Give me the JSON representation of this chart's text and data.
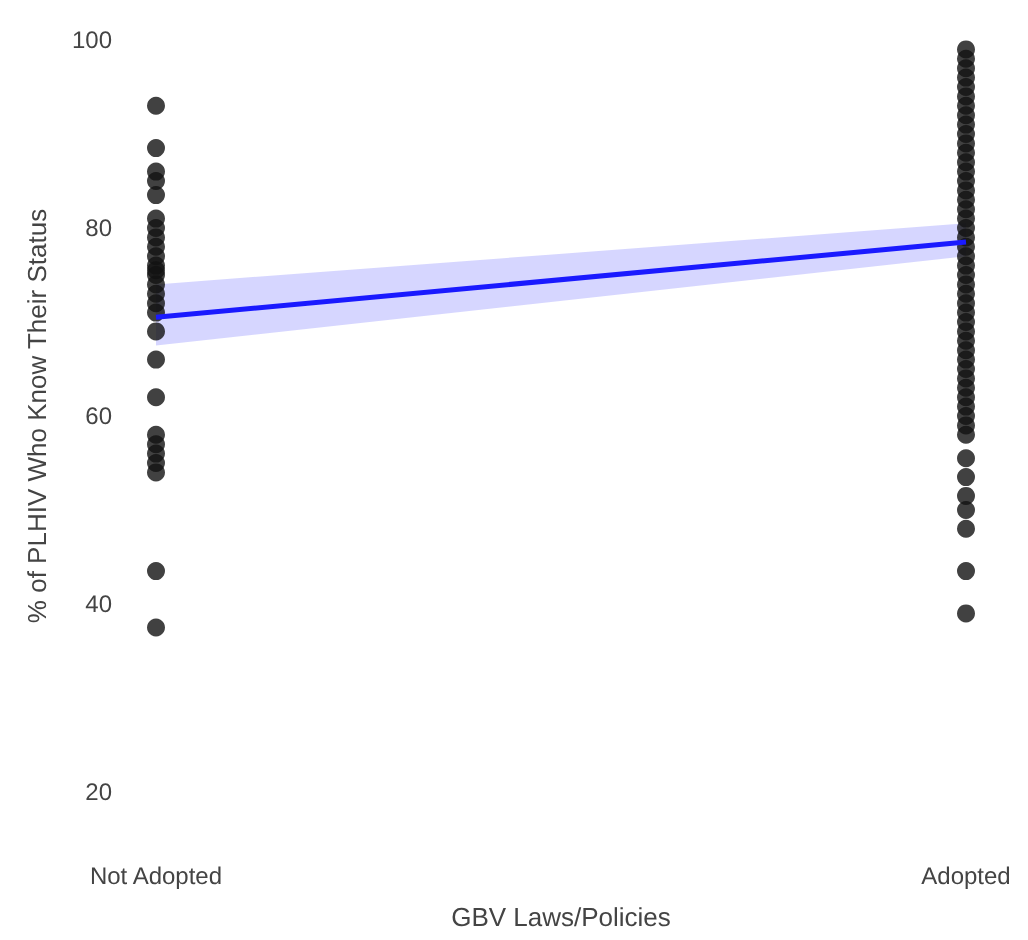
{
  "chart_data": {
    "type": "scatter",
    "xlabel": "GBV Laws/Policies",
    "ylabel": "% of PLHIV Who Know Their Status",
    "categories": [
      "Not Adopted",
      "Adopted"
    ],
    "ylim": [
      20,
      100
    ],
    "yticks": [
      20,
      40,
      60,
      80,
      100
    ],
    "grid": false,
    "series": [
      {
        "color": "#111111",
        "marker": "circle",
        "x": [
          "Not Adopted",
          "Not Adopted",
          "Not Adopted",
          "Not Adopted",
          "Not Adopted",
          "Not Adopted",
          "Not Adopted",
          "Not Adopted",
          "Not Adopted",
          "Not Adopted",
          "Not Adopted",
          "Not Adopted",
          "Not Adopted",
          "Not Adopted",
          "Not Adopted",
          "Not Adopted",
          "Not Adopted",
          "Not Adopted",
          "Not Adopted",
          "Not Adopted",
          "Not Adopted",
          "Not Adopted",
          "Not Adopted",
          "Not Adopted",
          "Not Adopted",
          "Not Adopted",
          "Not Adopted",
          "Adopted",
          "Adopted",
          "Adopted",
          "Adopted",
          "Adopted",
          "Adopted",
          "Adopted",
          "Adopted",
          "Adopted",
          "Adopted",
          "Adopted",
          "Adopted",
          "Adopted",
          "Adopted",
          "Adopted",
          "Adopted",
          "Adopted",
          "Adopted",
          "Adopted",
          "Adopted",
          "Adopted",
          "Adopted",
          "Adopted",
          "Adopted",
          "Adopted",
          "Adopted",
          "Adopted",
          "Adopted",
          "Adopted",
          "Adopted",
          "Adopted",
          "Adopted",
          "Adopted",
          "Adopted",
          "Adopted",
          "Adopted",
          "Adopted",
          "Adopted",
          "Adopted",
          "Adopted",
          "Adopted",
          "Adopted",
          "Adopted",
          "Adopted",
          "Adopted",
          "Adopted",
          "Adopted",
          "Adopted",
          "Adopted"
        ],
        "values": [
          93,
          88.5,
          86,
          85,
          83.5,
          81,
          80,
          79,
          78,
          77,
          76,
          75.5,
          75,
          74,
          73,
          72,
          71,
          69,
          66,
          62,
          58,
          57,
          56,
          55,
          54,
          43.5,
          37.5,
          99,
          98,
          97,
          96,
          95,
          94,
          93,
          92,
          91,
          90,
          89,
          88,
          87,
          86,
          85,
          84,
          83,
          82,
          81,
          80,
          79,
          78,
          77,
          76,
          75,
          74,
          73,
          72,
          71,
          70,
          69,
          68,
          67,
          66,
          65,
          64,
          63,
          62,
          61,
          60,
          59,
          58,
          55.5,
          53.5,
          51.5,
          50,
          48,
          43.5,
          39
        ]
      },
      {
        "type": "line",
        "marker": "none",
        "color": "#1a1aff",
        "x": [
          "Not Adopted",
          "Adopted"
        ],
        "values": [
          70.5,
          78.5
        ],
        "lower": [
          67.5,
          77
        ],
        "upper": [
          74,
          80.5
        ]
      }
    ]
  }
}
